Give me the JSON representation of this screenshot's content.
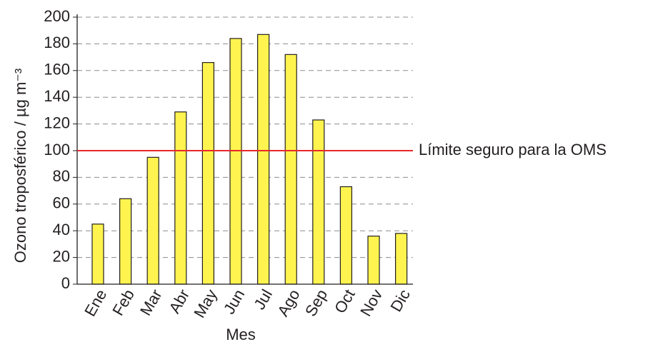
{
  "chart_data": {
    "type": "bar",
    "x_label": "Mes",
    "y_label": "Ozono troposférico / µg m⁻³",
    "categories": [
      "Ene",
      "Feb",
      "Mar",
      "Abr",
      "May",
      "Jun",
      "Jul",
      "Ago",
      "Sep",
      "Oct",
      "Nov",
      "Dic"
    ],
    "values": [
      45,
      64,
      95,
      129,
      166,
      184,
      187,
      172,
      123,
      73,
      36,
      38
    ],
    "color": "#fff44f",
    "ylim": [
      0,
      200
    ],
    "yticks": [
      0,
      20,
      40,
      60,
      80,
      100,
      120,
      140,
      160,
      180,
      200
    ],
    "grid": true,
    "reference_line": {
      "value": 100,
      "label": "Límite seguro para la OMS",
      "color": "#e8262a"
    }
  }
}
